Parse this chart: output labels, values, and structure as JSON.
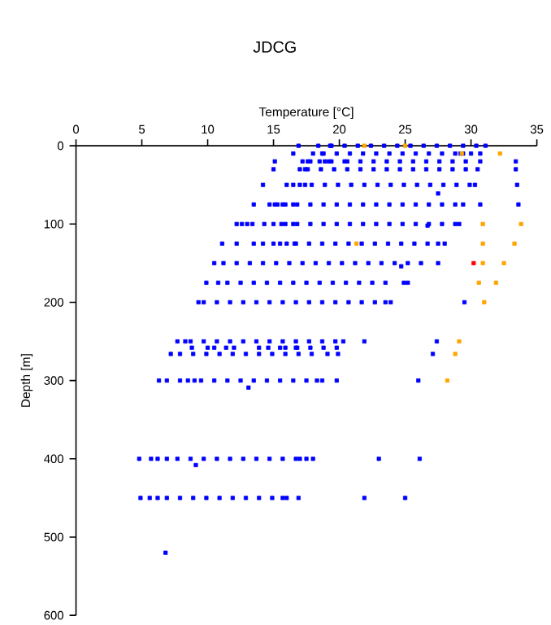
{
  "chart_data": {
    "type": "scatter",
    "title": "JDCG",
    "xlabel": "Temperature [°C]",
    "ylabel": "Depth [m]",
    "xlim": [
      0,
      35
    ],
    "xticks": [
      0,
      5,
      10,
      15,
      20,
      25,
      30,
      35
    ],
    "ylim": [
      600,
      0
    ],
    "yticks": [
      0,
      100,
      200,
      300,
      400,
      500,
      600
    ],
    "marker": "square",
    "series": [
      {
        "color": "#0000ff",
        "x": [
          16.9,
          18.4,
          19.3,
          19.4,
          20.4,
          21.4,
          22.4,
          23.4,
          24.4,
          25.4,
          26.4,
          27.4,
          28.4,
          29.4,
          30.4,
          31.1,
          16.5,
          18.0,
          18.7,
          18.8,
          19.8,
          20.8,
          21.8,
          22.8,
          23.8,
          24.8,
          25.8,
          26.8,
          27.8,
          28.8,
          29.2,
          29.4,
          30.0,
          30.7,
          15.1,
          17.2,
          17.6,
          17.8,
          18.5,
          18.9,
          19.2,
          19.4,
          20.4,
          20.6,
          21.6,
          22.6,
          23.6,
          24.6,
          25.6,
          26.6,
          27.6,
          28.6,
          29.6,
          30.7,
          33.4,
          15.0,
          17.0,
          17.4,
          17.6,
          18.6,
          19.6,
          20.6,
          21.6,
          22.6,
          23.6,
          24.6,
          25.6,
          26.6,
          27.6,
          28.6,
          29.6,
          30.5,
          33.4,
          14.2,
          16.0,
          16.5,
          17.0,
          17.4,
          17.9,
          18.9,
          19.9,
          20.9,
          21.9,
          22.9,
          23.9,
          24.9,
          25.9,
          26.9,
          27.9,
          28.9,
          29.9,
          30.3,
          33.5,
          27.5,
          13.5,
          14.7,
          15.1,
          15.3,
          15.7,
          15.9,
          16.5,
          16.8,
          17.8,
          18.8,
          19.8,
          20.8,
          21.8,
          22.8,
          23.8,
          24.8,
          25.8,
          26.8,
          27.8,
          28.8,
          29.4,
          30.7,
          33.6,
          12.2,
          12.6,
          13.0,
          13.4,
          14.3,
          15.0,
          15.6,
          15.9,
          16.5,
          16.8,
          17.8,
          18.8,
          19.8,
          20.8,
          21.8,
          22.8,
          23.8,
          24.8,
          25.8,
          26.8,
          27.8,
          28.8,
          29.1,
          26.7,
          11.1,
          12.2,
          13.5,
          14.2,
          15.0,
          15.5,
          16.0,
          16.6,
          16.7,
          17.7,
          18.7,
          19.7,
          20.7,
          21.7,
          22.7,
          23.7,
          24.7,
          25.7,
          26.7,
          27.5,
          28.0,
          10.5,
          11.2,
          12.2,
          13.2,
          14.2,
          15.2,
          16.2,
          17.2,
          18.2,
          19.2,
          20.2,
          21.2,
          22.2,
          23.2,
          24.2,
          25.2,
          26.2,
          27.5,
          24.7,
          9.9,
          10.8,
          11.5,
          12.5,
          13.5,
          14.5,
          15.5,
          16.5,
          17.5,
          18.5,
          19.5,
          20.5,
          21.5,
          22.5,
          23.5,
          24.9,
          25.2,
          9.3,
          9.7,
          10.7,
          11.7,
          12.7,
          13.7,
          14.7,
          15.7,
          16.7,
          17.7,
          18.7,
          19.7,
          20.7,
          21.7,
          22.7,
          23.5,
          23.9,
          29.5,
          7.7,
          8.3,
          8.7,
          9.7,
          10.7,
          11.7,
          12.7,
          13.7,
          14.7,
          15.7,
          16.7,
          17.7,
          18.7,
          19.7,
          20.3,
          21.9,
          27.4,
          8.8,
          10.0,
          10.5,
          11.4,
          12.0,
          13.9,
          14.6,
          15.5,
          15.9,
          16.7,
          16.8,
          17.8,
          18.8,
          19.8,
          7.2,
          7.9,
          8.9,
          9.9,
          10.9,
          11.9,
          12.9,
          13.9,
          14.9,
          15.9,
          16.9,
          17.9,
          19.1,
          19.9,
          27.1,
          6.3,
          6.9,
          7.9,
          8.5,
          9.0,
          9.5,
          10.5,
          11.5,
          12.5,
          13.5,
          14.5,
          15.5,
          16.5,
          17.5,
          18.3,
          18.7,
          19.8,
          26.0,
          13.1,
          4.8,
          5.7,
          6.2,
          6.9,
          7.7,
          8.7,
          9.7,
          10.7,
          11.7,
          12.7,
          13.7,
          14.7,
          15.7,
          16.7,
          17.0,
          17.5,
          18.0,
          23.0,
          26.1,
          9.1,
          4.9,
          5.6,
          6.2,
          6.9,
          7.9,
          8.9,
          9.9,
          10.9,
          11.9,
          12.9,
          13.9,
          14.9,
          15.7,
          16.0,
          16.9,
          21.9,
          25.0,
          6.8
        ],
        "values": [
          0,
          0,
          0,
          0,
          0,
          0,
          0,
          0,
          0,
          0,
          0,
          0,
          0,
          0,
          0,
          0,
          10,
          10,
          10,
          10,
          10,
          10,
          10,
          10,
          10,
          10,
          10,
          10,
          10,
          10,
          10,
          10,
          10,
          10,
          20,
          20,
          20,
          20,
          20,
          20,
          20,
          20,
          20,
          20,
          20,
          20,
          20,
          20,
          20,
          20,
          20,
          20,
          20,
          20,
          20,
          30,
          30,
          30,
          30,
          30,
          30,
          30,
          30,
          30,
          30,
          30,
          30,
          30,
          30,
          30,
          30,
          30,
          30,
          50,
          50,
          50,
          50,
          50,
          50,
          50,
          50,
          50,
          50,
          50,
          50,
          50,
          50,
          50,
          50,
          50,
          50,
          50,
          50,
          61,
          75,
          75,
          75,
          75,
          75,
          75,
          75,
          75,
          75,
          75,
          75,
          75,
          75,
          75,
          75,
          75,
          75,
          75,
          75,
          75,
          75,
          75,
          75,
          100,
          100,
          100,
          100,
          100,
          100,
          100,
          100,
          100,
          100,
          100,
          100,
          100,
          100,
          100,
          100,
          100,
          100,
          100,
          100,
          100,
          100,
          100,
          102,
          125,
          125,
          125,
          125,
          125,
          125,
          125,
          125,
          125,
          125,
          125,
          125,
          125,
          125,
          125,
          125,
          125,
          125,
          125,
          125,
          125,
          150,
          150,
          150,
          150,
          150,
          150,
          150,
          150,
          150,
          150,
          150,
          150,
          150,
          150,
          150,
          150,
          150,
          150,
          154,
          175,
          175,
          175,
          175,
          175,
          175,
          175,
          175,
          175,
          175,
          175,
          175,
          175,
          175,
          175,
          175,
          175,
          200,
          200,
          200,
          200,
          200,
          200,
          200,
          200,
          200,
          200,
          200,
          200,
          200,
          200,
          200,
          200,
          200,
          200,
          250,
          250,
          250,
          250,
          250,
          250,
          250,
          250,
          250,
          250,
          250,
          250,
          250,
          250,
          250,
          250,
          250,
          258,
          258,
          258,
          258,
          258,
          258,
          258,
          258,
          258,
          258,
          258,
          258,
          258,
          258,
          266,
          266,
          266,
          266,
          266,
          266,
          266,
          266,
          266,
          266,
          266,
          266,
          266,
          266,
          266,
          300,
          300,
          300,
          300,
          300,
          300,
          300,
          300,
          300,
          300,
          300,
          300,
          300,
          300,
          300,
          300,
          300,
          300,
          309,
          400,
          400,
          400,
          400,
          400,
          400,
          400,
          400,
          400,
          400,
          400,
          400,
          400,
          400,
          400,
          400,
          400,
          400,
          400,
          408,
          450,
          450,
          450,
          450,
          450,
          450,
          450,
          450,
          450,
          450,
          450,
          450,
          450,
          450,
          450,
          450,
          450,
          520
        ]
      },
      {
        "color": "#ffa500",
        "x": [
          21.9,
          25.0,
          29.3,
          32.2,
          30.9,
          33.8,
          21.3,
          30.9,
          33.3,
          30.9,
          32.5,
          30.6,
          31.9,
          31.0,
          29.1,
          28.8,
          28.2
        ],
        "values": [
          0,
          0,
          10,
          10,
          100,
          100,
          125,
          125,
          125,
          150,
          150,
          175,
          175,
          200,
          250,
          266,
          300
        ]
      },
      {
        "color": "#ff0000",
        "x": [
          30.2
        ],
        "values": [
          150
        ]
      }
    ]
  }
}
